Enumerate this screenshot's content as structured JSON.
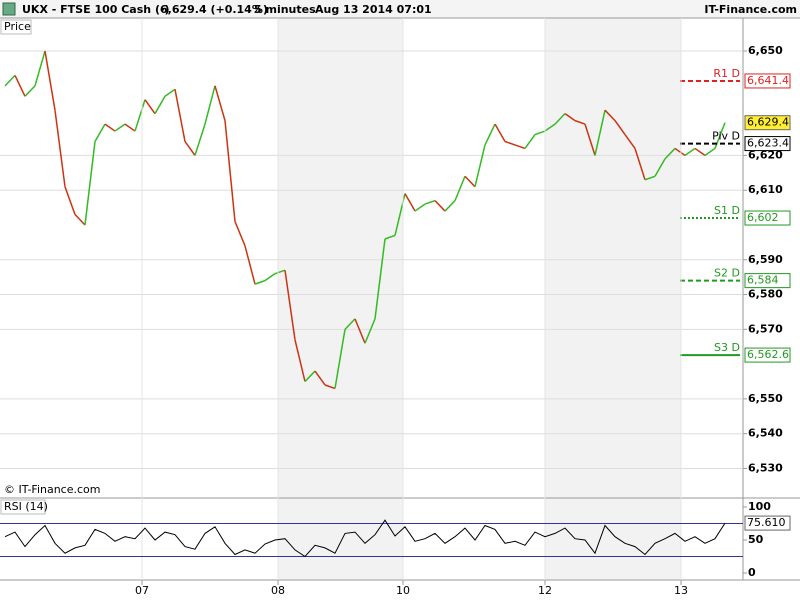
{
  "header": {
    "symbol": "UKX - FTSE 100 Cash (-)",
    "quote": "6,629.4 (+0.14%)",
    "interval": "5 minutes",
    "timestamp": "Aug 13 2014 07:01",
    "brand": "IT-Finance.com"
  },
  "chart_data": [
    {
      "type": "line",
      "title": "Price",
      "footer": "© IT-Finance.com",
      "x": [
        0,
        1,
        2,
        3,
        4,
        5,
        6,
        7,
        8,
        9,
        10,
        11,
        12,
        13,
        14,
        15,
        16,
        17,
        18,
        19,
        20,
        21,
        22,
        23,
        24,
        25,
        26,
        27,
        28,
        29,
        30,
        31,
        32,
        33,
        34,
        35,
        36,
        37,
        38,
        39,
        40,
        41,
        42,
        43,
        44,
        45,
        46,
        47,
        48,
        49,
        50,
        51,
        52,
        53,
        54,
        55,
        56,
        57,
        58,
        59,
        60,
        61,
        62,
        63,
        64,
        65,
        66,
        67,
        68,
        69,
        70,
        71,
        72
      ],
      "series": [
        {
          "name": "UKX",
          "up_color": "#33bb22",
          "down_color": "#cc3311",
          "values": [
            6640,
            6643,
            6637,
            6640,
            6650,
            6633,
            6611,
            6603,
            6600,
            6624,
            6629,
            6627,
            6629,
            6627,
            6636,
            6632,
            6637,
            6639,
            6624,
            6620,
            6629,
            6640,
            6630,
            6601,
            6594,
            6583,
            6584,
            6586,
            6587,
            6567,
            6555,
            6558,
            6554,
            6553,
            6570,
            6573,
            6566,
            6573,
            6596,
            6597,
            6609,
            6604,
            6606,
            6607,
            6604,
            6607,
            6614,
            6611,
            6623,
            6629,
            6624,
            6623,
            6622,
            6626,
            6627,
            6629,
            6632,
            6630,
            6629,
            6620,
            6633,
            6630,
            6626,
            6622,
            6613,
            6614,
            6619,
            6622,
            6620,
            6622,
            6620,
            6622,
            6629.4
          ]
        }
      ],
      "xlim": [
        -0.5,
        73.8
      ],
      "ylim": [
        6521.8,
        6659.5
      ],
      "yticks": [
        {
          "value": 6650,
          "label": "6,650"
        },
        {
          "value": 6620,
          "label": "6,620"
        },
        {
          "value": 6610,
          "label": "6,610"
        },
        {
          "value": 6590,
          "label": "6,590"
        },
        {
          "value": 6580,
          "label": "6,580"
        },
        {
          "value": 6570,
          "label": "6,570"
        },
        {
          "value": 6550,
          "label": "6,550"
        },
        {
          "value": 6540,
          "label": "6,540"
        },
        {
          "value": 6530,
          "label": "6,530"
        }
      ],
      "grid": true,
      "levels": [
        {
          "name": "R1 D",
          "value": 6641.4,
          "value_label": "6,641.4",
          "color": "#dd2222",
          "style": "dashed"
        },
        {
          "name": "Piv D",
          "value": 6623.4,
          "value_label": "6,623.4",
          "color": "#000000",
          "style": "dashed"
        },
        {
          "name": "S1 D",
          "value": 6602,
          "value_label": "6,602",
          "color": "#229922",
          "style": "dotted"
        },
        {
          "name": "S2 D",
          "value": 6584,
          "value_label": "6,584",
          "color": "#229922",
          "style": "dashed"
        },
        {
          "name": "S3 D",
          "value": 6562.6,
          "value_label": "6,562.6",
          "color": "#229922",
          "style": "solid"
        }
      ],
      "last": {
        "value": 6629.4,
        "value_label": "6,629.4",
        "color": "#ffee33"
      }
    },
    {
      "type": "line",
      "title": "RSI (14)",
      "x": [
        0,
        1,
        2,
        3,
        4,
        5,
        6,
        7,
        8,
        9,
        10,
        11,
        12,
        13,
        14,
        15,
        16,
        17,
        18,
        19,
        20,
        21,
        22,
        23,
        24,
        25,
        26,
        27,
        28,
        29,
        30,
        31,
        32,
        33,
        34,
        35,
        36,
        37,
        38,
        39,
        40,
        41,
        42,
        43,
        44,
        45,
        46,
        47,
        48,
        49,
        50,
        51,
        52,
        53,
        54,
        55,
        56,
        57,
        58,
        59,
        60,
        61,
        62,
        63,
        64,
        65,
        66,
        67,
        68,
        69,
        70,
        71,
        72
      ],
      "series": [
        {
          "name": "RSI",
          "color": "#000000",
          "values": [
            55,
            62,
            40,
            58,
            72,
            45,
            30,
            38,
            42,
            66,
            60,
            48,
            55,
            52,
            68,
            50,
            62,
            58,
            40,
            36,
            60,
            70,
            45,
            28,
            35,
            30,
            44,
            50,
            52,
            35,
            25,
            42,
            38,
            30,
            60,
            62,
            45,
            58,
            80,
            56,
            70,
            48,
            52,
            60,
            45,
            55,
            68,
            50,
            72,
            66,
            45,
            48,
            42,
            62,
            55,
            60,
            68,
            52,
            50,
            30,
            72,
            55,
            45,
            40,
            28,
            45,
            52,
            60,
            48,
            55,
            45,
            52,
            75.61
          ]
        }
      ],
      "xlim": [
        -0.5,
        73.8
      ],
      "ylim": [
        -10.6,
        113.6
      ],
      "yticks": [
        0,
        50,
        100
      ],
      "bands": [
        25,
        75
      ],
      "band_color": "#333399",
      "xticks": [
        {
          "value": 13.7,
          "label": "07"
        },
        {
          "value": 27.3,
          "label": "08"
        },
        {
          "value": 39.8,
          "label": "10"
        },
        {
          "value": 54,
          "label": "12"
        },
        {
          "value": 67.6,
          "label": "13"
        }
      ],
      "last": {
        "value": 75.61,
        "value_label": "75.610"
      }
    }
  ]
}
